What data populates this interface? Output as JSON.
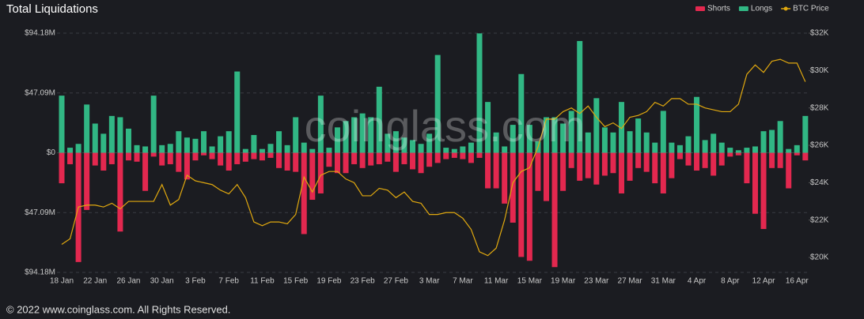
{
  "chart_data": {
    "type": "bar",
    "title": "Total Liquidations",
    "watermark": "coinglass.com",
    "footer": "© 2022 www.coinglass.com. All Rights Reserved.",
    "grid": true,
    "legend": "top-right",
    "categories": [
      "18 Jan",
      null,
      null,
      null,
      "22 Jan",
      null,
      null,
      null,
      "26 Jan",
      null,
      null,
      null,
      "30 Jan",
      null,
      null,
      null,
      "3 Feb",
      null,
      null,
      null,
      "7 Feb",
      null,
      null,
      null,
      "11 Feb",
      null,
      null,
      null,
      "15 Feb",
      null,
      null,
      null,
      "19 Feb",
      null,
      null,
      null,
      "23 Feb",
      null,
      null,
      null,
      "27 Feb",
      null,
      null,
      null,
      "3 Mar",
      null,
      null,
      null,
      "7 Mar",
      null,
      null,
      null,
      "11 Mar",
      null,
      null,
      null,
      "15 Mar",
      null,
      null,
      null,
      "19 Mar",
      null,
      null,
      null,
      "23 Mar",
      null,
      null,
      null,
      "27 Mar",
      null,
      null,
      null,
      "31 Mar",
      null,
      null,
      null,
      "4 Apr",
      null,
      null,
      null,
      "8 Apr",
      null,
      null,
      null,
      "12 Apr",
      null,
      null,
      null,
      "16 Apr",
      null
    ],
    "ylim": [
      -94.18,
      94.18
    ],
    "yticks": [
      {
        "value": 94.18,
        "label": "$94.18M"
      },
      {
        "value": 47.09,
        "label": "$47.09M"
      },
      {
        "value": 0,
        "label": "$0"
      },
      {
        "value": -47.09,
        "label": "$47.09M"
      },
      {
        "value": -94.18,
        "label": "$94.18M"
      }
    ],
    "y2lim": [
      19200,
      32000
    ],
    "y2ticks": [
      {
        "value": 32000,
        "label": "$32K"
      },
      {
        "value": 30000,
        "label": "$30K"
      },
      {
        "value": 28000,
        "label": "$28K"
      },
      {
        "value": 26000,
        "label": "$26K"
      },
      {
        "value": 24000,
        "label": "$24K"
      },
      {
        "value": 22000,
        "label": "$22K"
      },
      {
        "value": 20000,
        "label": "$20K"
      }
    ],
    "series": [
      {
        "name": "Shorts",
        "color": "#e3284f",
        "values": [
          -24,
          -9,
          -86,
          -45,
          -10,
          -14,
          -9,
          -62,
          -6,
          -7,
          -30,
          -3,
          -10,
          -9,
          -15,
          -21,
          -6,
          -2,
          -5,
          -10,
          -14,
          -9,
          -7,
          -5,
          -6,
          -4,
          -12,
          -14,
          -15,
          -64,
          -37,
          -32,
          -11,
          -16,
          -16,
          -9,
          -12,
          -10,
          -9,
          -7,
          -15,
          -9,
          -13,
          -16,
          -11,
          -8,
          -5,
          -4,
          -5,
          -8,
          -4,
          -28,
          -28,
          -40,
          -55,
          -82,
          -85,
          -30,
          -38,
          -90,
          -30,
          -12,
          -22,
          -20,
          -25,
          -18,
          -16,
          -32,
          -22,
          -12,
          -15,
          -24,
          -32,
          -20,
          -5,
          -10,
          -14,
          -12,
          -18,
          -10,
          -3,
          -2,
          -24,
          -48,
          -60,
          -12,
          -12,
          -28,
          -2,
          -6
        ]
      },
      {
        "name": "Longs",
        "color": "#31b784",
        "values": [
          45,
          4,
          7,
          38,
          23,
          15,
          29,
          28,
          19,
          6,
          5,
          45,
          6,
          7,
          17,
          12,
          11,
          17,
          5,
          13,
          17,
          64,
          3,
          14,
          3,
          7,
          17,
          6,
          28,
          8,
          3,
          45,
          4,
          20,
          25,
          28,
          31,
          28,
          52,
          15,
          17,
          12,
          10,
          7,
          15,
          77,
          4,
          3,
          5,
          8,
          94,
          40,
          16,
          5,
          22,
          62,
          22,
          9,
          28,
          28,
          23,
          33,
          88,
          16,
          43,
          20,
          16,
          40,
          17,
          27,
          16,
          8,
          33,
          8,
          6,
          13,
          44,
          10,
          15,
          8,
          4,
          2,
          4,
          5,
          17,
          18,
          25,
          3,
          6,
          29
        ]
      },
      {
        "name": "BTC Price",
        "color": "#e0a80f",
        "axis": "y2",
        "values": [
          20700,
          21000,
          22700,
          22800,
          22800,
          22700,
          22900,
          22600,
          23000,
          23000,
          23000,
          23000,
          23900,
          22800,
          23100,
          24400,
          24100,
          24000,
          23900,
          23600,
          23400,
          23900,
          23200,
          21900,
          21700,
          21900,
          21900,
          21800,
          22300,
          24300,
          23500,
          24400,
          24600,
          24600,
          24200,
          24000,
          23300,
          23300,
          23700,
          23600,
          23200,
          23500,
          23000,
          22900,
          22300,
          22300,
          22400,
          22400,
          22100,
          21500,
          20300,
          20100,
          20500,
          22000,
          24000,
          24600,
          24800,
          25900,
          27400,
          27400,
          27800,
          28000,
          27700,
          28100,
          27500,
          27000,
          27200,
          26900,
          27500,
          27600,
          27800,
          28300,
          28100,
          28500,
          28500,
          28200,
          28200,
          28000,
          27900,
          27800,
          27800,
          28200,
          29800,
          30300,
          29900,
          30500,
          30600,
          30400,
          30400,
          29400
        ]
      }
    ]
  }
}
